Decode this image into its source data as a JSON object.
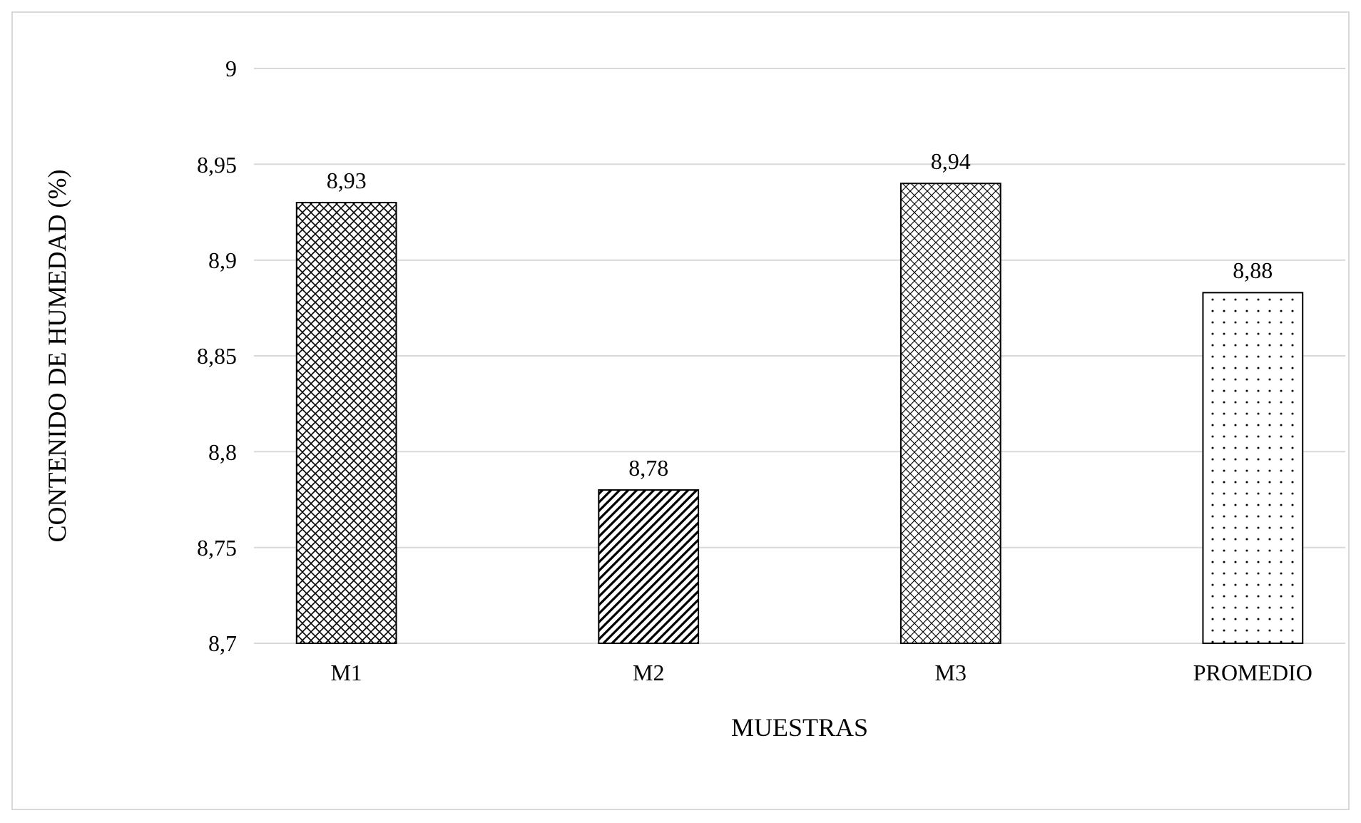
{
  "chart_data": {
    "type": "bar",
    "xlabel": "MUESTRAS",
    "ylabel": "CONTENIDO DE HUMEDAD (%)",
    "categories": [
      "M1",
      "M2",
      "M3",
      "PROMEDIO"
    ],
    "values": [
      8.93,
      8.78,
      8.94,
      8.883
    ],
    "value_labels": [
      "8,93",
      "8,78",
      "8,94",
      "8,88"
    ],
    "colors": [
      "#000000",
      "#000000",
      "#000000",
      "#000000"
    ],
    "ylim": [
      8.7,
      9
    ],
    "yticks": [
      {
        "value": 8.7,
        "label": "8,7"
      },
      {
        "value": 8.75,
        "label": "8,75"
      },
      {
        "value": 8.8,
        "label": "8,8"
      },
      {
        "value": 8.85,
        "label": "8,85"
      },
      {
        "value": 8.9,
        "label": "8,9"
      },
      {
        "value": 8.95,
        "label": "8,95"
      },
      9
    ],
    "grid": "y"
  }
}
